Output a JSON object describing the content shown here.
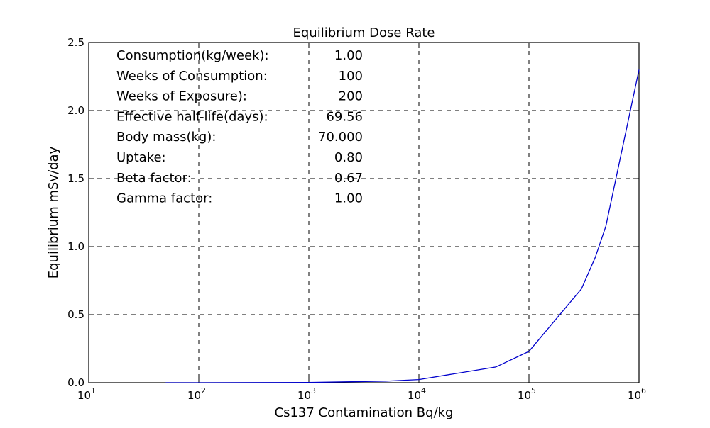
{
  "chart_data": {
    "type": "line",
    "title": "Equilibrium Dose Rate",
    "xlabel": "Cs137 Contamination Bq/kg",
    "ylabel": "Equilibrium mSv/day",
    "xscale": "log",
    "xlim": [
      10,
      1000000
    ],
    "ylim": [
      0,
      2.5
    ],
    "grid": true,
    "x_ticks": [
      {
        "base": "10",
        "exp": "1"
      },
      {
        "base": "10",
        "exp": "2"
      },
      {
        "base": "10",
        "exp": "3"
      },
      {
        "base": "10",
        "exp": "4"
      },
      {
        "base": "10",
        "exp": "5"
      },
      {
        "base": "10",
        "exp": "6"
      }
    ],
    "y_ticks": [
      "0.0",
      "0.5",
      "1.0",
      "1.5",
      "2.0",
      "2.5"
    ],
    "line_color": "#0000cc",
    "series": [
      {
        "x": [
          50,
          100,
          500,
          1000,
          5000,
          10000,
          50000,
          100000,
          300000,
          400000,
          500000,
          1000000
        ],
        "y": [
          0.0001,
          0.0002,
          0.001,
          0.002,
          0.011,
          0.023,
          0.115,
          0.23,
          0.69,
          0.92,
          1.15,
          2.3
        ]
      }
    ],
    "annotations": [
      {
        "label": "Consumption(kg/week):",
        "value": "1.00"
      },
      {
        "label": "Weeks of Consumption:",
        "value": "100"
      },
      {
        "label": "Weeks of Exposure):",
        "value": "200"
      },
      {
        "label": "Effective half-life(days):",
        "value": "69.56"
      },
      {
        "label": "Body mass(kg):",
        "value": "70.000"
      },
      {
        "label": "Uptake:",
        "value": "0.80"
      },
      {
        "label": "Beta factor:",
        "value": "0.67"
      },
      {
        "label": "Gamma factor:",
        "value": "1.00"
      }
    ]
  }
}
